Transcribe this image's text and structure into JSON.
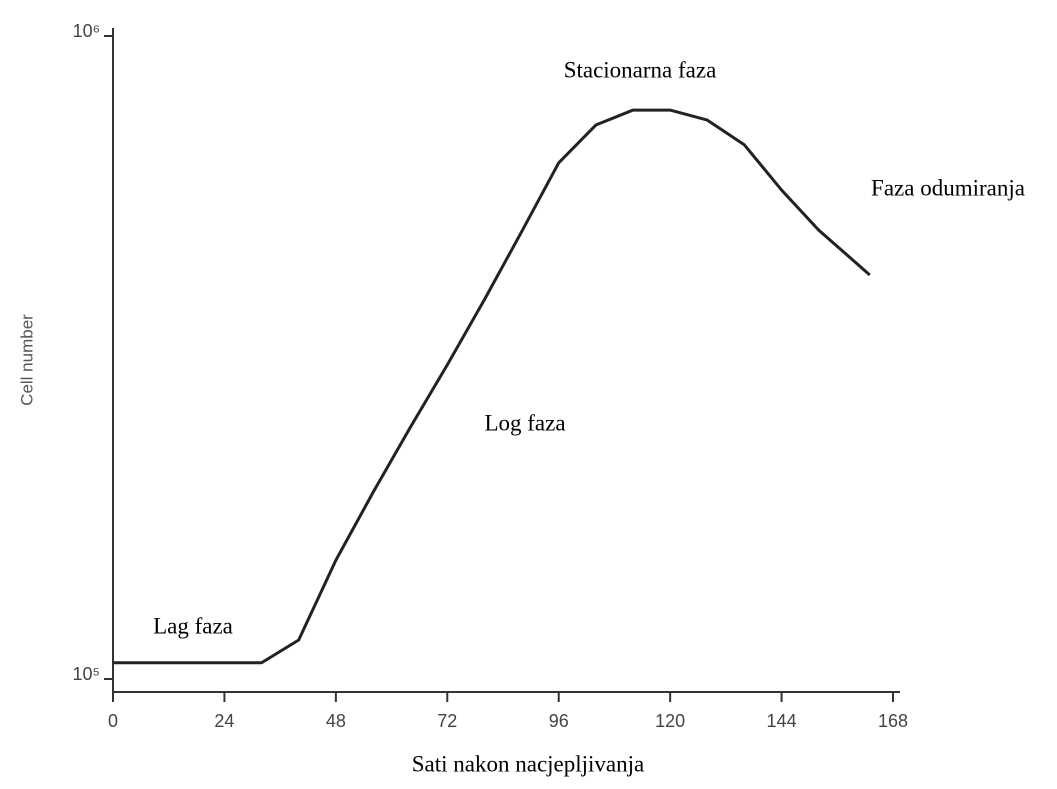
{
  "chart_data": {
    "type": "line",
    "x_label": "Sati nakon nacjepljivanja",
    "y_label": "Cell number",
    "x": [
      0,
      24,
      32,
      40,
      48,
      56,
      64,
      72,
      80,
      88,
      96,
      104,
      112,
      120,
      128,
      136,
      144,
      152,
      163
    ],
    "series": [
      {
        "color": "#222222",
        "values": [
          106000,
          106000,
          106000,
          115000,
          153000,
          195000,
          246000,
          308000,
          389000,
          496000,
          635000,
          727000,
          767000,
          767000,
          740000,
          677000,
          576000,
          499000,
          425000
        ]
      }
    ],
    "xlim": [
      0,
      168
    ],
    "xticks": [
      0,
      24,
      48,
      72,
      96,
      120,
      144,
      168
    ],
    "ylim": [
      100000,
      1000000
    ],
    "yticks": [
      {
        "value": 100000,
        "label": "10⁵"
      },
      {
        "value": 1000000,
        "label": "10⁶"
      }
    ],
    "y_scale": "log",
    "grid": false,
    "annotations": [
      "Stacionarna faza",
      "Faza odumiranja",
      "Log faza",
      "Lag faza"
    ]
  }
}
